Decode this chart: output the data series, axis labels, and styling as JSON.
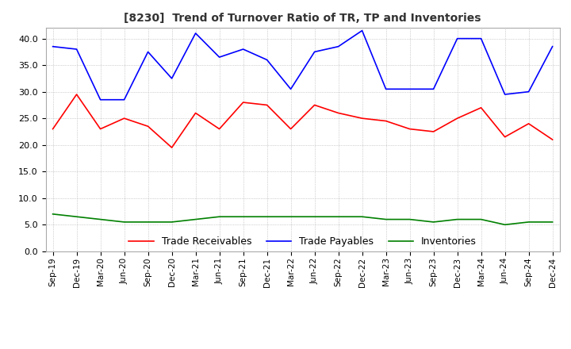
{
  "title": "[8230]  Trend of Turnover Ratio of TR, TP and Inventories",
  "x_labels": [
    "Sep-19",
    "Dec-19",
    "Mar-20",
    "Jun-20",
    "Sep-20",
    "Dec-20",
    "Mar-21",
    "Jun-21",
    "Sep-21",
    "Dec-21",
    "Mar-22",
    "Jun-22",
    "Sep-22",
    "Dec-22",
    "Mar-23",
    "Jun-23",
    "Sep-23",
    "Dec-23",
    "Mar-24",
    "Jun-24",
    "Sep-24",
    "Dec-24"
  ],
  "trade_receivables": [
    23.0,
    29.5,
    23.0,
    25.0,
    23.5,
    19.5,
    26.0,
    23.0,
    28.0,
    27.5,
    23.0,
    27.5,
    26.0,
    25.0,
    24.5,
    23.0,
    22.5,
    25.0,
    27.0,
    21.5,
    24.0,
    21.0
  ],
  "trade_payables": [
    38.5,
    38.0,
    28.5,
    28.5,
    37.5,
    32.5,
    41.0,
    36.5,
    38.0,
    36.0,
    30.5,
    37.5,
    38.5,
    41.5,
    30.5,
    30.5,
    30.5,
    40.0,
    40.0,
    29.5,
    30.0,
    38.5
  ],
  "inventories": [
    7.0,
    6.5,
    6.0,
    5.5,
    5.5,
    5.5,
    6.0,
    6.5,
    6.5,
    6.5,
    6.5,
    6.5,
    6.5,
    6.5,
    6.0,
    6.0,
    5.5,
    6.0,
    6.0,
    5.0,
    5.5,
    5.5
  ],
  "tr_color": "#ff0000",
  "tp_color": "#0000ff",
  "inv_color": "#008000",
  "ylim": [
    0,
    42
  ],
  "yticks": [
    0.0,
    5.0,
    10.0,
    15.0,
    20.0,
    25.0,
    30.0,
    35.0,
    40.0
  ],
  "bg_color": "#ffffff",
  "grid_color": "#aaaaaa",
  "legend_labels": [
    "Trade Receivables",
    "Trade Payables",
    "Inventories"
  ]
}
